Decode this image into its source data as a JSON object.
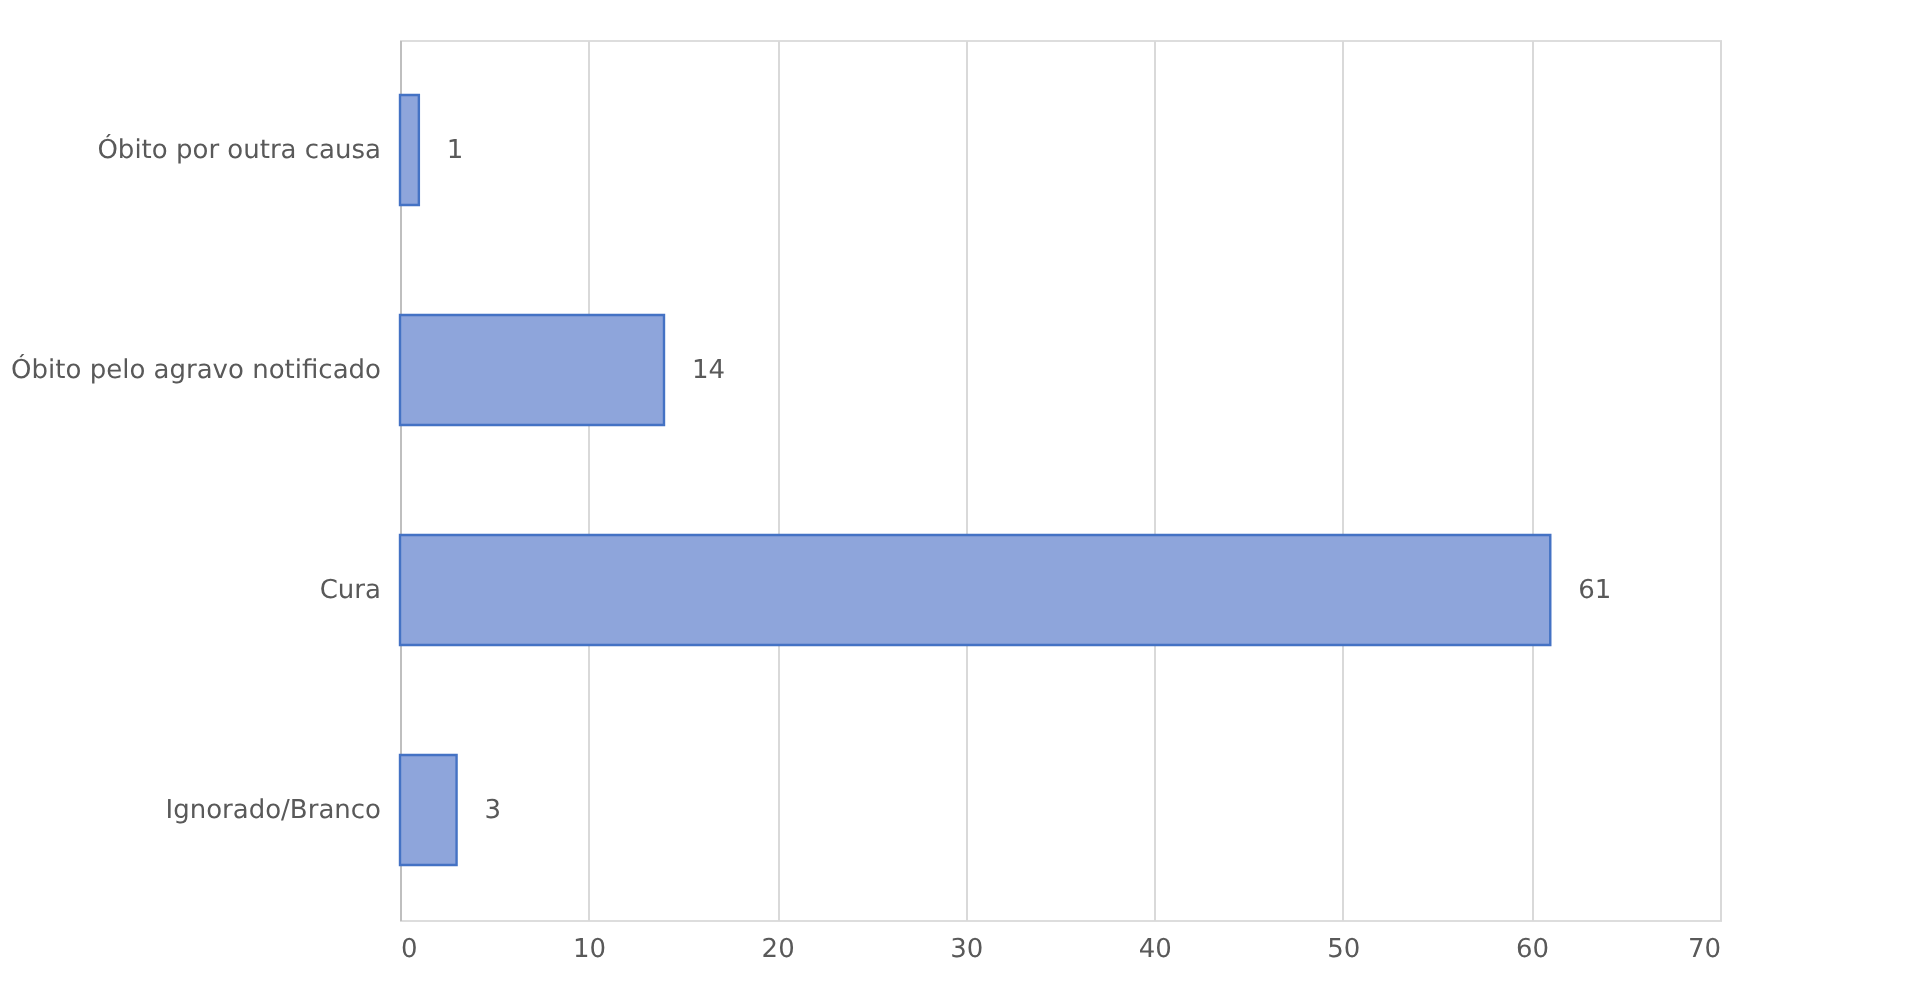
{
  "chart_data": {
    "type": "bar",
    "orientation": "horizontal",
    "categories": [
      "Óbito por outra causa",
      "Óbito pelo agravo notificado",
      "Cura",
      "Ignorado/Branco"
    ],
    "values": [
      1,
      14,
      61,
      3
    ],
    "color": "#8ea5db",
    "xlim": [
      0,
      70
    ],
    "xticks": [
      0,
      10,
      20,
      30,
      40,
      50,
      60,
      70
    ],
    "grid": "x",
    "data_labels": true
  }
}
